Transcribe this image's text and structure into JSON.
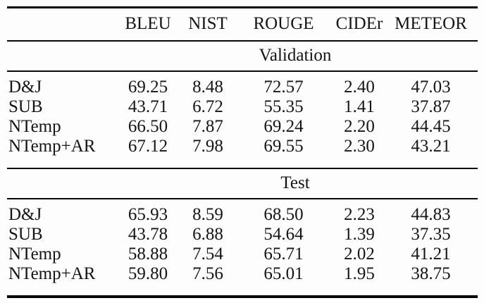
{
  "colors": {
    "background": "#fdfdfd",
    "text": "#151515",
    "rule": "#080808"
  },
  "table": {
    "columns": {
      "c1": "BLEU",
      "c2": "NIST",
      "c3": "ROUGE",
      "c4": "CIDEr",
      "c5": "METEOR"
    },
    "sections": [
      {
        "title": "Validation",
        "rows": [
          {
            "label": "D&J",
            "values": [
              "69.25",
              "8.48",
              "72.57",
              "2.40",
              "47.03"
            ]
          },
          {
            "label": "SUB",
            "values": [
              "43.71",
              "6.72",
              "55.35",
              "1.41",
              "37.87"
            ]
          },
          {
            "label": "NTemp",
            "values": [
              "66.50",
              "7.87",
              "69.24",
              "2.20",
              "44.45"
            ]
          },
          {
            "label": "NTemp+AR",
            "values": [
              "67.12",
              "7.98",
              "69.55",
              "2.30",
              "43.21"
            ]
          }
        ]
      },
      {
        "title": "Test",
        "rows": [
          {
            "label": "D&J",
            "values": [
              "65.93",
              "8.59",
              "68.50",
              "2.23",
              "44.83"
            ]
          },
          {
            "label": "SUB",
            "values": [
              "43.78",
              "6.88",
              "54.64",
              "1.39",
              "37.35"
            ]
          },
          {
            "label": "NTemp",
            "values": [
              "58.88",
              "7.54",
              "65.71",
              "2.02",
              "41.21"
            ]
          },
          {
            "label": "NTemp+AR",
            "values": [
              "59.80",
              "7.56",
              "65.01",
              "1.95",
              "38.75"
            ]
          }
        ]
      }
    ]
  },
  "chart_data": {
    "type": "table",
    "title": "",
    "columns": [
      "BLEU",
      "NIST",
      "ROUGE",
      "CIDEr",
      "METEOR"
    ],
    "groups": [
      "Validation",
      "Test"
    ],
    "rows": [
      {
        "group": "Validation",
        "model": "D&J",
        "values": [
          69.25,
          8.48,
          72.57,
          2.4,
          47.03
        ]
      },
      {
        "group": "Validation",
        "model": "SUB",
        "values": [
          43.71,
          6.72,
          55.35,
          1.41,
          37.87
        ]
      },
      {
        "group": "Validation",
        "model": "NTemp",
        "values": [
          66.5,
          7.87,
          69.24,
          2.2,
          44.45
        ]
      },
      {
        "group": "Validation",
        "model": "NTemp+AR",
        "values": [
          67.12,
          7.98,
          69.55,
          2.3,
          43.21
        ]
      },
      {
        "group": "Test",
        "model": "D&J",
        "values": [
          65.93,
          8.59,
          68.5,
          2.23,
          44.83
        ]
      },
      {
        "group": "Test",
        "model": "SUB",
        "values": [
          43.78,
          6.88,
          54.64,
          1.39,
          37.35
        ]
      },
      {
        "group": "Test",
        "model": "NTemp",
        "values": [
          58.88,
          7.54,
          65.71,
          2.02,
          41.21
        ]
      },
      {
        "group": "Test",
        "model": "NTemp+AR",
        "values": [
          59.8,
          7.56,
          65.01,
          1.95,
          38.75
        ]
      }
    ]
  }
}
